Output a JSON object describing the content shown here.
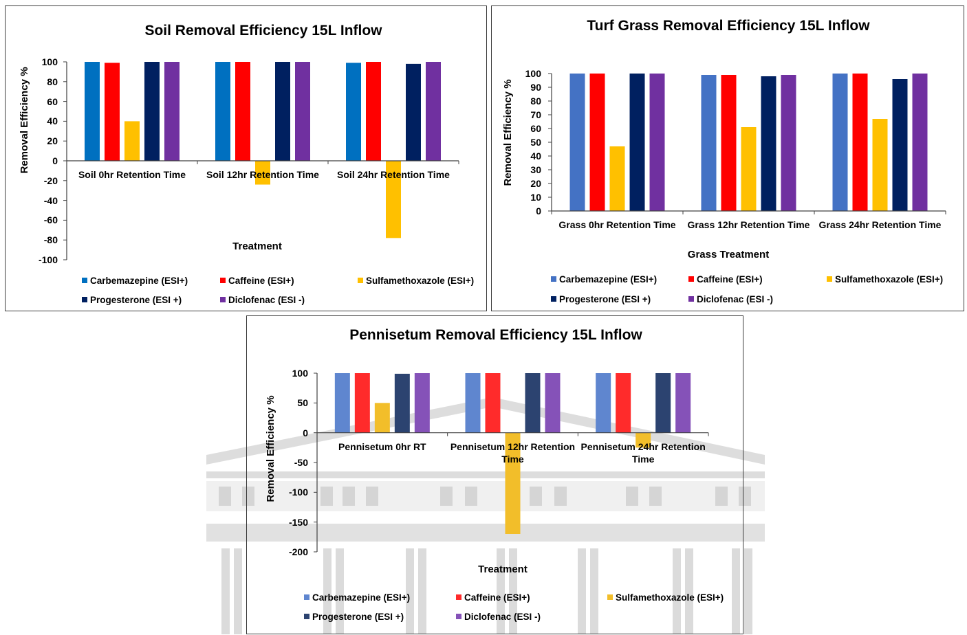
{
  "chart_data": [
    {
      "type": "bar",
      "title": "Soil Removal Efficiency 15L Inflow",
      "xlabel": "Treatment",
      "ylabel": "Removal Efficiency %",
      "categories": [
        "Soil 0hr Retention Time",
        "Soil 12hr Retention Time",
        "Soil 24hr Retention Time"
      ],
      "ylim": [
        -100,
        100
      ],
      "yticks": [
        100,
        80,
        60,
        40,
        20,
        0,
        -20,
        -40,
        -60,
        -80,
        -100
      ],
      "grid": false,
      "legend_position": "bottom",
      "series": [
        {
          "name": "Carbemazepine (ESI+)",
          "color": "#0070C0",
          "values": [
            100,
            100,
            99
          ]
        },
        {
          "name": "Caffeine (ESI+)",
          "color": "#FF0000",
          "values": [
            99,
            100,
            100
          ]
        },
        {
          "name": "Sulfamethoxazole (ESI+)",
          "color": "#FFC000",
          "values": [
            40,
            -24,
            -78
          ]
        },
        {
          "name": "Progesterone (ESI +)",
          "color": "#002060",
          "values": [
            100,
            100,
            98
          ]
        },
        {
          "name": "Diclofenac (ESI -)",
          "color": "#7030A0",
          "values": [
            100,
            100,
            100
          ]
        }
      ]
    },
    {
      "type": "bar",
      "title": "Turf Grass Removal Efficiency 15L Inflow",
      "xlabel": "Grass Treatment",
      "ylabel": "Removal Efficiency %",
      "categories": [
        "Grass 0hr Retention Time",
        "Grass 12hr Retention Time",
        "Grass 24hr Retention Time"
      ],
      "ylim": [
        0,
        100
      ],
      "yticks": [
        100,
        90,
        80,
        70,
        60,
        50,
        40,
        30,
        20,
        10,
        0
      ],
      "grid": false,
      "legend_position": "bottom",
      "series": [
        {
          "name": "Carbemazepine (ESI+)",
          "color": "#4472C4",
          "values": [
            100,
            99,
            100
          ]
        },
        {
          "name": "Caffeine (ESI+)",
          "color": "#FF0000",
          "values": [
            100,
            99,
            100
          ]
        },
        {
          "name": "Sulfamethoxazole (ESI+)",
          "color": "#FFC000",
          "values": [
            47,
            61,
            67
          ]
        },
        {
          "name": "Progesterone (ESI +)",
          "color": "#002060",
          "values": [
            100,
            98,
            96
          ]
        },
        {
          "name": "Diclofenac (ESI -)",
          "color": "#7030A0",
          "values": [
            100,
            99,
            100
          ]
        }
      ]
    },
    {
      "type": "bar",
      "title": "Pennisetum Removal Efficiency 15L Inflow",
      "xlabel": "Treatment",
      "ylabel": "Removal Efficiency %",
      "categories": [
        "Pennisetum 0hr RT",
        "Pennisetum 12hr Retention Time",
        "Pennisetum 24hr Retention Time"
      ],
      "ylim": [
        -200,
        100
      ],
      "yticks": [
        100,
        50,
        0,
        -50,
        -100,
        -150,
        -200
      ],
      "grid": false,
      "legend_position": "bottom",
      "series": [
        {
          "name": "Carbemazepine (ESI+)",
          "color": "#5F86CF",
          "values": [
            100,
            100,
            100
          ]
        },
        {
          "name": "Caffeine (ESI+)",
          "color": "#FF2B2B",
          "values": [
            100,
            100,
            100
          ]
        },
        {
          "name": "Sulfamethoxazole (ESI+)",
          "color": "#F2BE2A",
          "values": [
            50,
            -170,
            -25
          ]
        },
        {
          "name": "Progesterone (ESI +)",
          "color": "#2C4370",
          "values": [
            99,
            100,
            100
          ]
        },
        {
          "name": "Diclofenac (ESI -)",
          "color": "#8552B8",
          "values": [
            100,
            100,
            100
          ]
        }
      ]
    }
  ]
}
